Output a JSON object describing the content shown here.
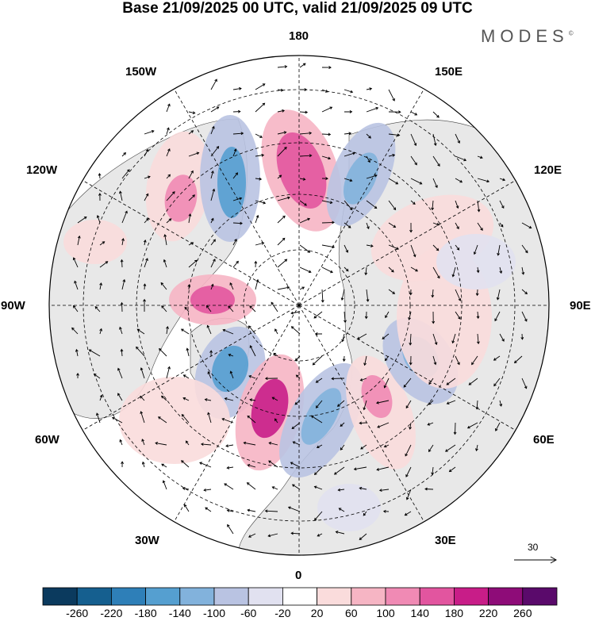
{
  "header": {
    "title": "Base 21/09/2025 00 UTC, valid 21/09/2025 09 UTC",
    "logo": "MODES",
    "logo_mark": "©"
  },
  "map": {
    "projection": "north-polar-stereographic",
    "longitude_labels": [
      {
        "id": "lon-180",
        "text": "180"
      },
      {
        "id": "lon-150e",
        "text": "150E"
      },
      {
        "id": "lon-120e",
        "text": "120E"
      },
      {
        "id": "lon-90e",
        "text": "90E"
      },
      {
        "id": "lon-60e",
        "text": "60E"
      },
      {
        "id": "lon-30e",
        "text": "30E"
      },
      {
        "id": "lon-0",
        "text": "0"
      },
      {
        "id": "lon-30w",
        "text": "30W"
      },
      {
        "id": "lon-60w",
        "text": "60W"
      },
      {
        "id": "lon-90w",
        "text": "90W"
      },
      {
        "id": "lon-120w",
        "text": "120W"
      },
      {
        "id": "lon-150w",
        "text": "150W"
      }
    ],
    "reference_vector_label": "30"
  },
  "colorbar": {
    "colors": [
      "#0b3a5e",
      "#155f8f",
      "#2e7fb8",
      "#559fd0",
      "#82b2dc",
      "#b9c3e2",
      "#e1e1f0",
      "#ffffff",
      "#fadcdc",
      "#f6b5c4",
      "#f08ab4",
      "#e2559f",
      "#c81d88",
      "#8e0c78",
      "#5a0a6b"
    ],
    "labels": [
      "-260",
      "-220",
      "-180",
      "-140",
      "-100",
      "-60",
      "-20",
      "20",
      "60",
      "100",
      "140",
      "180",
      "220",
      "260"
    ]
  },
  "colors": {
    "land": "#e8e8e8",
    "ocean": "#ffffff",
    "grid": "#000000"
  }
}
